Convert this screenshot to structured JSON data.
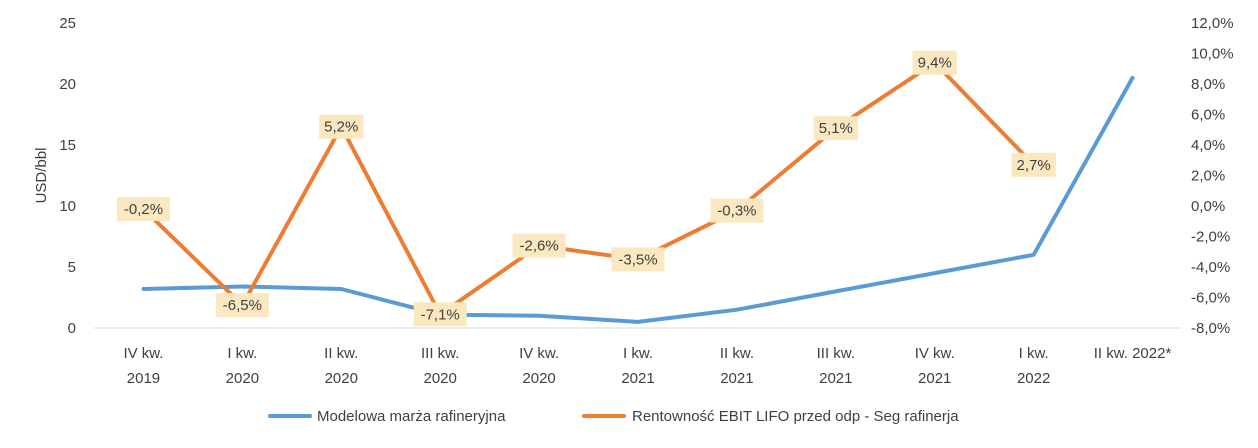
{
  "chart_data": {
    "type": "line",
    "categories": [
      [
        "IV kw.",
        "2019"
      ],
      [
        "I kw.",
        "2020"
      ],
      [
        "II kw.",
        "2020"
      ],
      [
        "III kw.",
        "2020"
      ],
      [
        "IV kw.",
        "2020"
      ],
      [
        "I kw.",
        "2021"
      ],
      [
        "II kw.",
        "2021"
      ],
      [
        "III kw.",
        "2021"
      ],
      [
        "IV kw.",
        "2021"
      ],
      [
        "I kw.",
        "2022"
      ],
      [
        "II kw. 2022*"
      ]
    ],
    "ylabel": "USD/bbl",
    "y_left": {
      "min": 0,
      "max": 25,
      "ticks": [
        "0",
        "5",
        "10",
        "15",
        "20",
        "25"
      ]
    },
    "y_right": {
      "min": -8,
      "max": 12,
      "ticks": [
        "-8,0%",
        "-6,0%",
        "-4,0%",
        "-2,0%",
        "0,0%",
        "2,0%",
        "4,0%",
        "6,0%",
        "8,0%",
        "10,0%",
        "12,0%"
      ]
    },
    "grid": false,
    "legend_position": "bottom",
    "series": [
      {
        "name": "Modelowa marża rafineryjna",
        "axis": "left",
        "color": "#5b9bd5",
        "values": [
          3.2,
          3.4,
          3.2,
          1.1,
          1.0,
          0.5,
          1.5,
          3.0,
          4.5,
          6.0,
          20.5
        ]
      },
      {
        "name": "Rentowność EBIT LIFO przed odp - Seg rafinerja",
        "axis": "right",
        "color": "#ed7d31",
        "values": [
          -0.2,
          -6.5,
          5.2,
          -7.1,
          -2.6,
          -3.5,
          -0.3,
          5.1,
          9.4,
          2.7,
          null
        ],
        "labels": [
          "-0,2%",
          "-6,5%",
          "5,2%",
          "-7,1%",
          "-2,6%",
          "-3,5%",
          "-0,3%",
          "5,1%",
          "9,4%",
          "2,7%",
          null
        ]
      }
    ]
  }
}
